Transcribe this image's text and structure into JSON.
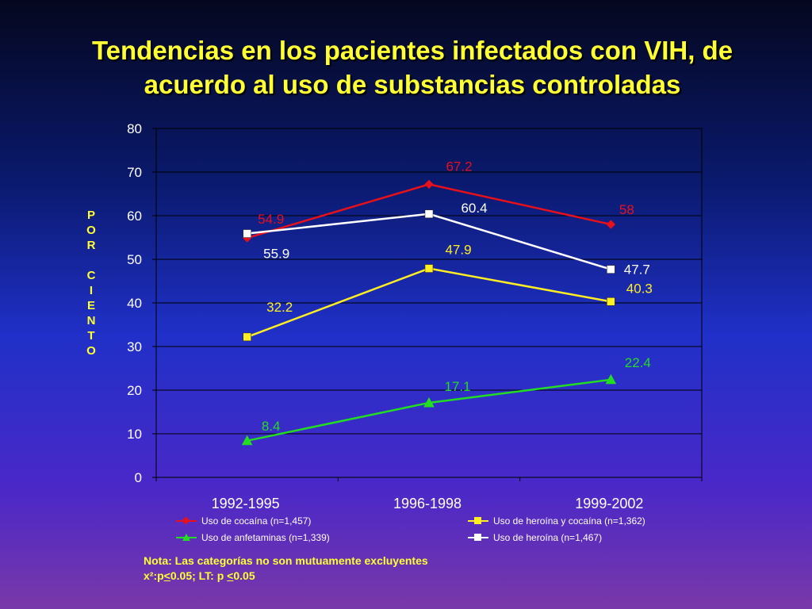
{
  "title": {
    "line1": "Tendencias en los pacientes infectados con VIH, de",
    "line2": "acuerdo al uso de substancias controladas"
  },
  "ylabel_letters": [
    "P",
    "O",
    "R",
    "",
    "C",
    "I",
    "E",
    "N",
    "T",
    "O"
  ],
  "note": {
    "line1": "Nota: Las categorías no son mutuamente excluyentes",
    "line2_prefix": "x²:p",
    "line2_lt1": "<",
    "line2_mid": "0.05;  LT: p ",
    "line2_lt2": "<",
    "line2_end": "0.05"
  },
  "chart_data": {
    "type": "line",
    "categories": [
      "1992-1995",
      "1996-1998",
      "1999-2002"
    ],
    "ylim": [
      0,
      80
    ],
    "yticks": [
      0,
      10,
      20,
      30,
      40,
      50,
      60,
      70,
      80
    ],
    "ylabel": "POR CIENTO",
    "series": [
      {
        "name": "Uso de cocaína (n=1,457)",
        "values": [
          54.9,
          67.2,
          58
        ],
        "labels": [
          "54.9",
          "67.2",
          "58"
        ],
        "color": "#e8101a",
        "marker": "diamond"
      },
      {
        "name": "Uso de heroína y cocaína (n=1,362)",
        "values": [
          32.2,
          47.9,
          40.3
        ],
        "labels": [
          "32.2",
          "47.9",
          "40.3"
        ],
        "color": "#ffee22",
        "marker": "square"
      },
      {
        "name": "Uso de anfetaminas (n=1,339)",
        "values": [
          8.4,
          17.1,
          22.4
        ],
        "labels": [
          "8.4",
          "17.1",
          "22.4"
        ],
        "color": "#22dd22",
        "marker": "triangle"
      },
      {
        "name": "Uso de heroína (n=1,467)",
        "values": [
          55.9,
          60.4,
          47.7
        ],
        "labels": [
          "55.9",
          "60.4",
          "47.7"
        ],
        "color": "#ffffff",
        "marker": "square"
      }
    ]
  }
}
